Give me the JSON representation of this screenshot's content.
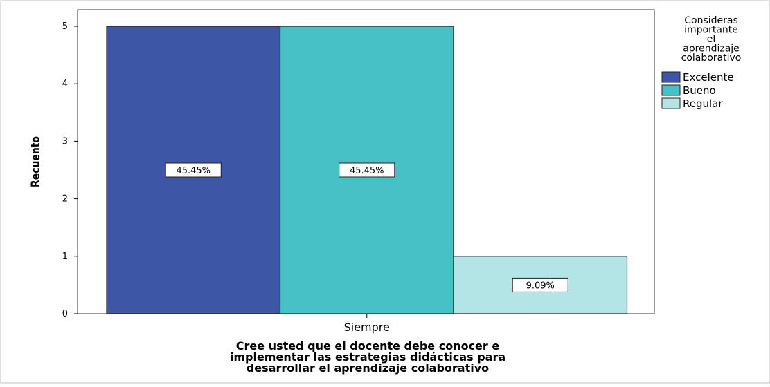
{
  "chart_data": {
    "type": "bar",
    "categories": [
      "Siempre"
    ],
    "series": [
      {
        "name": "Excelente",
        "values": [
          5
        ],
        "label": "45.45%",
        "color": "#3d56a6"
      },
      {
        "name": "Bueno",
        "values": [
          5
        ],
        "label": "45.45%",
        "color": "#48c1c6"
      },
      {
        "name": "Regular",
        "values": [
          1
        ],
        "label": "9.09%",
        "color": "#b3e5e6"
      }
    ],
    "xlabel": "Cree usted que el docente debe conocer e implementar las estrategias didácticas para desarrollar el aprendizaje colaborativo",
    "xlabel_lines": [
      "Cree usted que el docente debe conocer e",
      "implementar las estrategias didácticas para",
      "desarrollar el aprendizaje colaborativo"
    ],
    "ylabel": "Recuento",
    "ylim": [
      0,
      5
    ],
    "yticks": [
      0,
      1,
      2,
      3,
      4,
      5
    ],
    "grid": false,
    "legend": {
      "position": "right",
      "title_lines": [
        "Consideras",
        "importante",
        "el",
        "aprendizaje",
        "colaborativo"
      ]
    }
  }
}
